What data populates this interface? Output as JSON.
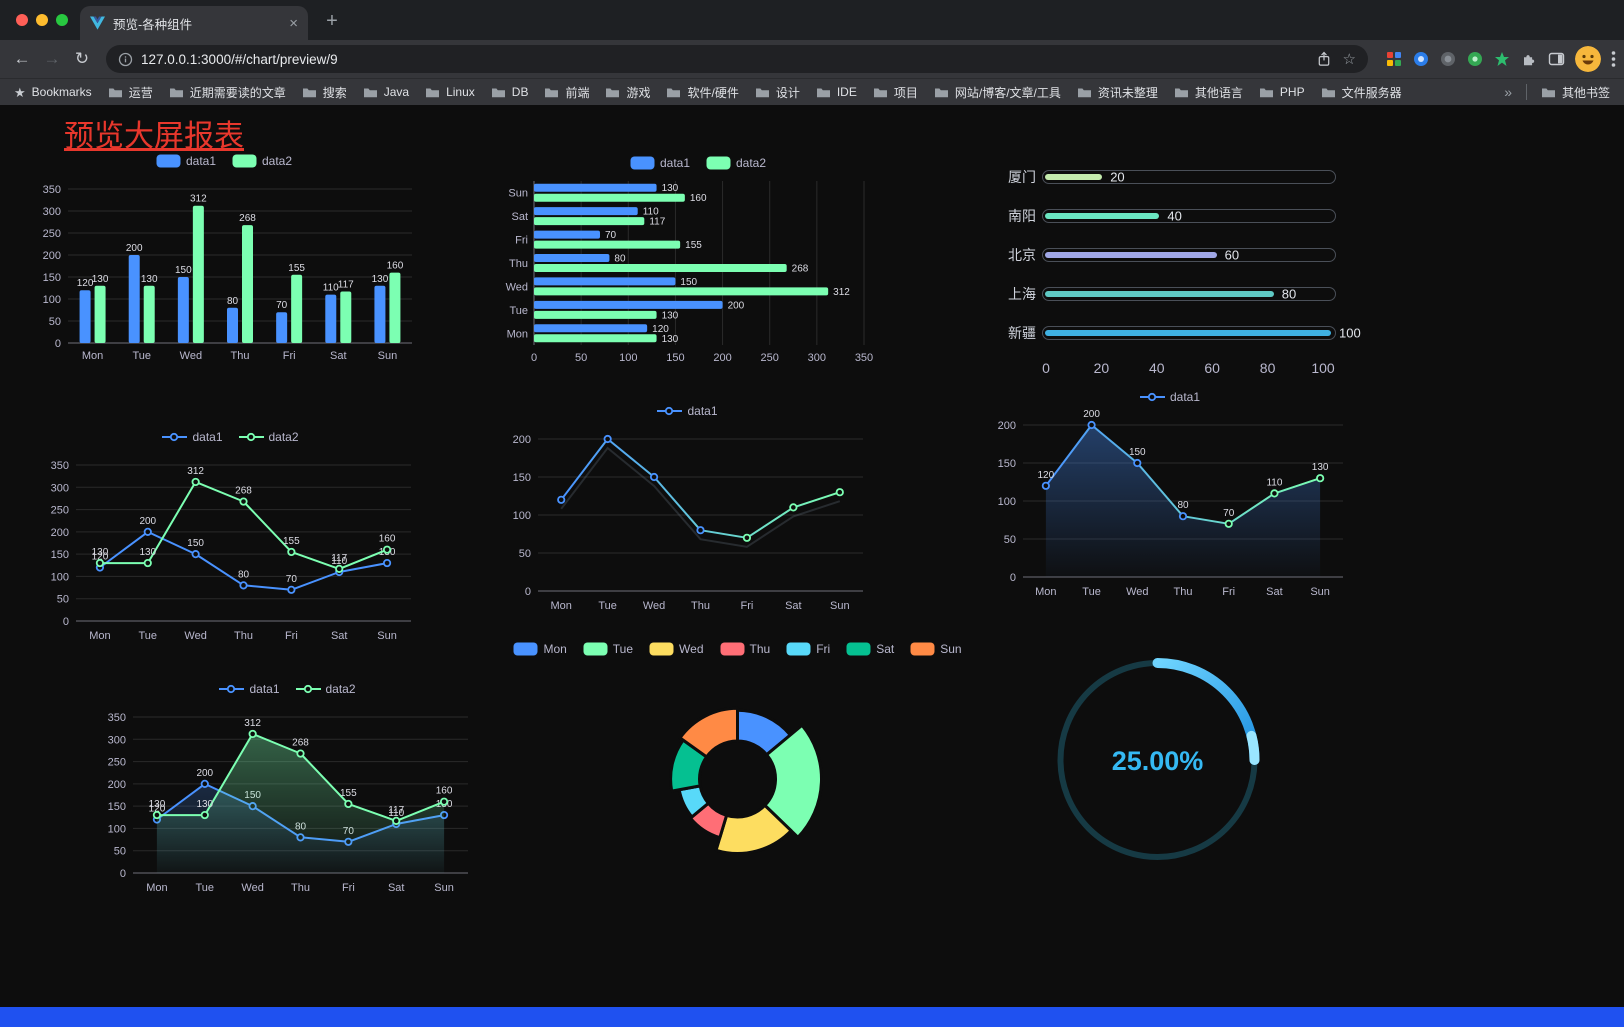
{
  "browser": {
    "tab_title": "预览-各种组件",
    "url": "127.0.0.1:3000/#/chart/preview/9",
    "bookmarks_bar": {
      "bookmarks_label": "Bookmarks",
      "folders": [
        "运营",
        "近期需要读的文章",
        "搜索",
        "Java",
        "Linux",
        "DB",
        "前端",
        "游戏",
        "软件/硬件",
        "设计",
        "IDE",
        "项目",
        "网站/博客/文章/工具",
        "资讯未整理",
        "其他语言",
        "PHP",
        "文件服务器"
      ],
      "overflow_chevron": "»",
      "other_bookmarks_label": "其他书签"
    }
  },
  "icons": {
    "close": "×",
    "new_tab": "+",
    "back": "←",
    "forward": "→",
    "reload": "↻",
    "bookmarks_star": "★",
    "omnibox_star": "☆"
  },
  "page": {
    "title": "预览大屏报表",
    "title_color": "#e8372c",
    "footer_color": "#1f51f0",
    "background": "#0d0d0d",
    "axis_text_color": "#B9B8CE",
    "label_text_color": "#dcdce4"
  },
  "chart_data": [
    {
      "id": "bar-grouped",
      "type": "bar",
      "legend": [
        "data1",
        "data2"
      ],
      "legend_position": "top",
      "categories": [
        "Mon",
        "Tue",
        "Wed",
        "Thu",
        "Fri",
        "Sat",
        "Sun"
      ],
      "series": [
        {
          "name": "data1",
          "color": "#4992ff",
          "values": [
            120,
            200,
            150,
            80,
            70,
            110,
            130
          ]
        },
        {
          "name": "data2",
          "color": "#7cffb2",
          "values": [
            130,
            130,
            312,
            268,
            155,
            117,
            160
          ]
        }
      ],
      "ylim": [
        0,
        350
      ],
      "ytick": 50,
      "value_labels": true,
      "grid": true
    },
    {
      "id": "bar-horizontal",
      "type": "bar",
      "orientation": "horizontal",
      "legend": [
        "data1",
        "data2"
      ],
      "categories": [
        "Mon",
        "Tue",
        "Wed",
        "Thu",
        "Fri",
        "Sat",
        "Sun"
      ],
      "series": [
        {
          "name": "data1",
          "color": "#4992ff",
          "values": [
            120,
            200,
            150,
            80,
            70,
            110,
            130
          ]
        },
        {
          "name": "data2",
          "color": "#7cffb2",
          "values": [
            130,
            130,
            312,
            268,
            155,
            117,
            160
          ]
        }
      ],
      "xlim": [
        0,
        350
      ],
      "xtick": 50,
      "value_labels": true,
      "grid": true
    },
    {
      "id": "progress-bars",
      "type": "bar",
      "orientation": "progress",
      "rows": [
        {
          "label": "厦门",
          "value": 20,
          "color": "#c4ebad"
        },
        {
          "label": "南阳",
          "value": 40,
          "color": "#6be6c1"
        },
        {
          "label": "北京",
          "value": 60,
          "color": "#a0a7e6"
        },
        {
          "label": "上海",
          "value": 80,
          "color": "#5fc9c4"
        },
        {
          "label": "新疆",
          "value": 100,
          "color": "#3fb1e3"
        }
      ],
      "xlim": [
        0,
        100
      ],
      "xticks": [
        0,
        20,
        40,
        60,
        80,
        100
      ]
    },
    {
      "id": "line-two-series",
      "type": "line",
      "legend": [
        "data1",
        "data2"
      ],
      "categories": [
        "Mon",
        "Tue",
        "Wed",
        "Thu",
        "Fri",
        "Sat",
        "Sun"
      ],
      "series": [
        {
          "name": "data1",
          "color": "#4992ff",
          "values": [
            120,
            200,
            150,
            80,
            70,
            110,
            130
          ]
        },
        {
          "name": "data2",
          "color": "#7cffb2",
          "values": [
            130,
            130,
            312,
            268,
            155,
            117,
            160
          ]
        }
      ],
      "ylim": [
        0,
        350
      ],
      "ytick": 50,
      "value_labels": true,
      "grid": true
    },
    {
      "id": "line-gradient",
      "type": "line",
      "legend": [
        "data1"
      ],
      "categories": [
        "Mon",
        "Tue",
        "Wed",
        "Thu",
        "Fri",
        "Sat",
        "Sun"
      ],
      "series": [
        {
          "name": "data1",
          "color": "#4992ff",
          "gradient": [
            "#4992ff",
            "#7cffb2"
          ],
          "values": [
            120,
            200,
            150,
            80,
            70,
            110,
            130
          ]
        }
      ],
      "ylim": [
        0,
        200
      ],
      "ytick": 50,
      "value_labels": false,
      "shadow": true,
      "grid": true
    },
    {
      "id": "area-single",
      "type": "line",
      "legend": [
        "data1"
      ],
      "categories": [
        "Mon",
        "Tue",
        "Wed",
        "Thu",
        "Fri",
        "Sat",
        "Sun"
      ],
      "series": [
        {
          "name": "data1",
          "color": "#4992ff",
          "gradient": [
            "#4992ff",
            "#7cffb2"
          ],
          "area_opacity": 0.38,
          "values": [
            120,
            200,
            150,
            80,
            70,
            110,
            130
          ]
        }
      ],
      "ylim": [
        0,
        200
      ],
      "ytick": 50,
      "value_labels": true,
      "grid": true
    },
    {
      "id": "area-two-series",
      "type": "line",
      "legend": [
        "data1",
        "data2"
      ],
      "categories": [
        "Mon",
        "Tue",
        "Wed",
        "Thu",
        "Fri",
        "Sat",
        "Sun"
      ],
      "series": [
        {
          "name": "data1",
          "color": "#4992ff",
          "area_opacity": 0.22,
          "values": [
            120,
            200,
            150,
            80,
            70,
            110,
            130
          ]
        },
        {
          "name": "data2",
          "color": "#7cffb2",
          "area_opacity": 0.35,
          "values": [
            130,
            130,
            312,
            268,
            155,
            117,
            160
          ]
        }
      ],
      "ylim": [
        0,
        350
      ],
      "ytick": 50,
      "value_labels": true,
      "grid": true
    },
    {
      "id": "donut-rose",
      "type": "pie",
      "legend": [
        "Mon",
        "Tue",
        "Wed",
        "Thu",
        "Fri",
        "Sat",
        "Sun"
      ],
      "items": [
        {
          "name": "Mon",
          "value": 120,
          "color": "#4992ff"
        },
        {
          "name": "Tue",
          "value": 200,
          "color": "#7cffb2"
        },
        {
          "name": "Wed",
          "value": 150,
          "color": "#fddd60"
        },
        {
          "name": "Thu",
          "value": 80,
          "color": "#ff6e76"
        },
        {
          "name": "Fri",
          "value": 70,
          "color": "#58d9f9"
        },
        {
          "name": "Sat",
          "value": 110,
          "color": "#05c091"
        },
        {
          "name": "Sun",
          "value": 130,
          "color": "#ff8a45"
        }
      ],
      "inner_radius": 38,
      "rose": true
    },
    {
      "id": "gauge-progress",
      "type": "gauge",
      "value": 25,
      "max": 100,
      "label": "25.00%",
      "color": "#35b9f3",
      "track_color": "#163a44"
    }
  ]
}
